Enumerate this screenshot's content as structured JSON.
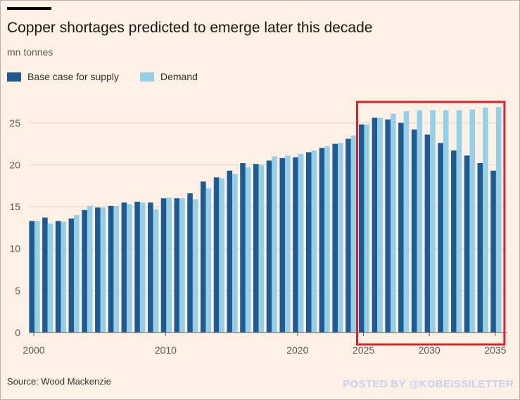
{
  "title": "Copper shortages predicted to emerge later this decade",
  "unit_label": "mn tonnes",
  "source": "Source: Wood Mackenzie",
  "watermark": "POSTED BY @KOBEISSILETTER",
  "colors": {
    "background": "#fdf1e6",
    "supply": "#1f5a91",
    "demand": "#96cfe8",
    "grid": "#e4d8ce",
    "highlight_box": "#d8232a"
  },
  "chart_data": {
    "type": "bar",
    "title": "Copper shortages predicted to emerge later this decade",
    "ylabel": "mn tonnes",
    "xlabel": "",
    "ylim": [
      0,
      28
    ],
    "yticks": [
      0,
      5,
      10,
      15,
      20,
      25
    ],
    "xticks": [
      2000,
      2010,
      2020,
      2025,
      2030,
      2035
    ],
    "grid": true,
    "legend_position": "top-left",
    "x": [
      2000,
      2001,
      2002,
      2003,
      2004,
      2005,
      2006,
      2007,
      2008,
      2009,
      2010,
      2011,
      2012,
      2013,
      2014,
      2015,
      2016,
      2017,
      2018,
      2019,
      2020,
      2021,
      2022,
      2023,
      2024,
      2025,
      2026,
      2027,
      2028,
      2029,
      2030,
      2031,
      2032,
      2033,
      2034,
      2035
    ],
    "series": [
      {
        "name": "Base case for supply",
        "color": "#1f5a91",
        "values": [
          13.3,
          13.7,
          13.3,
          13.6,
          14.6,
          14.9,
          15.1,
          15.5,
          15.6,
          15.5,
          16.0,
          16.0,
          16.6,
          18.0,
          18.5,
          19.3,
          20.2,
          20.1,
          20.5,
          20.8,
          20.9,
          21.5,
          22.0,
          22.5,
          23.1,
          24.8,
          25.6,
          25.4,
          25.0,
          24.2,
          23.6,
          22.6,
          21.7,
          21.1,
          20.2,
          19.3
        ]
      },
      {
        "name": "Demand",
        "color": "#96cfe8",
        "values": [
          13.3,
          13.0,
          13.2,
          14.0,
          15.1,
          14.9,
          15.1,
          15.3,
          15.5,
          14.7,
          16.1,
          16.0,
          15.9,
          17.2,
          18.4,
          18.9,
          19.7,
          20.0,
          21.0,
          21.1,
          21.3,
          21.7,
          22.2,
          22.6,
          23.5,
          24.8,
          25.6,
          26.1,
          26.4,
          26.5,
          26.5,
          26.5,
          26.5,
          26.6,
          26.8,
          26.9
        ]
      }
    ],
    "highlight_range": [
      2025,
      2035
    ]
  }
}
